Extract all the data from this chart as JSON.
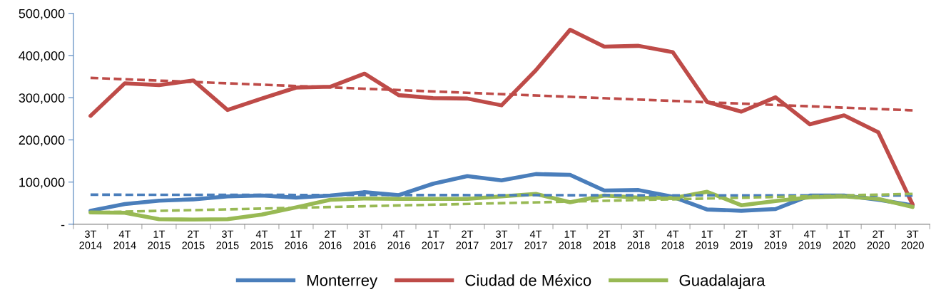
{
  "chart_data": {
    "type": "line",
    "categories": [
      "3T\n2014",
      "4T\n2014",
      "1T\n2015",
      "2T\n2015",
      "3T\n2015",
      "4T\n2015",
      "1T\n2016",
      "2T\n2016",
      "3T\n2016",
      "4T\n2016",
      "1T\n2017",
      "2T\n2017",
      "3T\n2017",
      "4T\n2017",
      "1T\n2018",
      "2T\n2018",
      "3T\n2018",
      "4T\n2018",
      "1T\n2019",
      "2T\n2019",
      "3T\n2019",
      "4T\n2019",
      "1T\n2020",
      "2T\n2020",
      "3T\n2020"
    ],
    "series": [
      {
        "name": "Monterrey",
        "color": "#4a7ebb",
        "values": [
          32000,
          48000,
          56000,
          59000,
          66000,
          68000,
          63000,
          68000,
          76000,
          69000,
          96000,
          114000,
          104000,
          119000,
          117000,
          80000,
          81000,
          65000,
          35000,
          32000,
          36000,
          68000,
          68000,
          58000,
          45000
        ]
      },
      {
        "name": "Ciudad de México",
        "color": "#be4b48",
        "values": [
          257000,
          334000,
          330000,
          341000,
          271000,
          298000,
          324000,
          326000,
          357000,
          306000,
          299000,
          298000,
          282000,
          365000,
          461000,
          421000,
          423000,
          408000,
          290000,
          267000,
          301000,
          237000,
          258000,
          218000,
          47000
        ]
      },
      {
        "name": "Guadalajara",
        "color": "#98b954",
        "values": [
          28000,
          27000,
          12000,
          11000,
          12000,
          23000,
          40000,
          58000,
          61000,
          60000,
          60000,
          60000,
          66000,
          72000,
          52000,
          68000,
          63000,
          62000,
          77000,
          45000,
          55000,
          64000,
          66000,
          60000,
          41000
        ]
      },
      {
        "color": "#4a7ebb",
        "line_style": "dashed",
        "x": [
          "3T\n2014",
          "3T\n2020"
        ],
        "values": [
          70000,
          68000
        ]
      },
      {
        "color": "#be4b48",
        "line_style": "dashed",
        "x": [
          "3T\n2014",
          "3T\n2020"
        ],
        "values": [
          347000,
          270000
        ]
      },
      {
        "color": "#98b954",
        "line_style": "dashed",
        "x": [
          "3T\n2014",
          "3T\n2020"
        ],
        "values": [
          28000,
          72000
        ]
      }
    ],
    "ylim": [
      0,
      500000
    ],
    "yticks": [
      {
        "value": 0,
        "label": "-"
      },
      {
        "value": 100000,
        "label": "100,000"
      },
      {
        "value": 200000,
        "label": "200,000"
      },
      {
        "value": 300000,
        "label": "300,000"
      },
      {
        "value": 400000,
        "label": "400,000"
      },
      {
        "value": 500000,
        "label": "500,000"
      }
    ],
    "grid": false,
    "legend": "bottom",
    "line_style": "solid",
    "marker": "none"
  }
}
